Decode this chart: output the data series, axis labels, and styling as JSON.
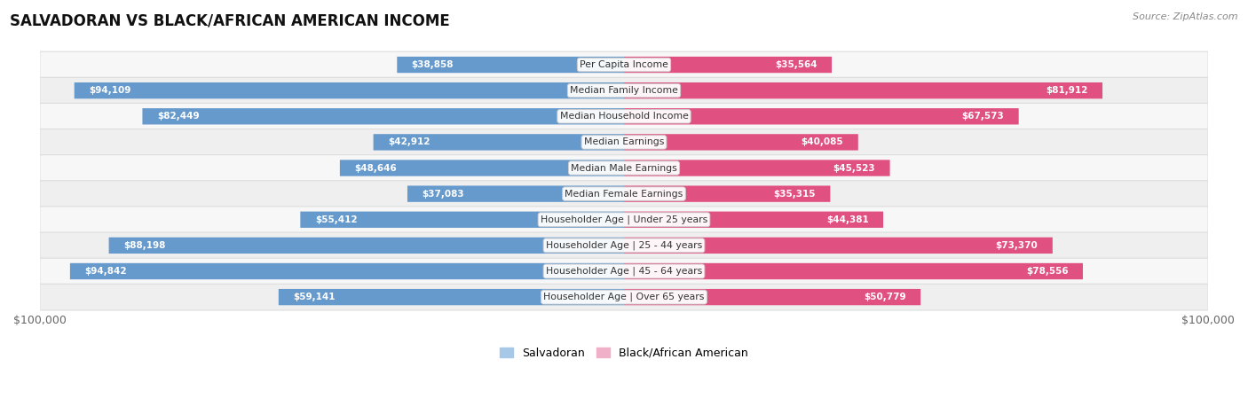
{
  "title": "SALVADORAN VS BLACK/AFRICAN AMERICAN INCOME",
  "source": "Source: ZipAtlas.com",
  "categories": [
    "Per Capita Income",
    "Median Family Income",
    "Median Household Income",
    "Median Earnings",
    "Median Male Earnings",
    "Median Female Earnings",
    "Householder Age | Under 25 years",
    "Householder Age | 25 - 44 years",
    "Householder Age | 45 - 64 years",
    "Householder Age | Over 65 years"
  ],
  "salvadoran_values": [
    38858,
    94109,
    82449,
    42912,
    48646,
    37083,
    55412,
    88198,
    94842,
    59141
  ],
  "black_values": [
    35564,
    81912,
    67573,
    40085,
    45523,
    35315,
    44381,
    73370,
    78556,
    50779
  ],
  "salvadoran_labels": [
    "$38,858",
    "$94,109",
    "$82,449",
    "$42,912",
    "$48,646",
    "$37,083",
    "$55,412",
    "$88,198",
    "$94,842",
    "$59,141"
  ],
  "black_labels": [
    "$35,564",
    "$81,912",
    "$67,573",
    "$40,085",
    "$45,523",
    "$35,315",
    "$44,381",
    "$73,370",
    "$78,556",
    "$50,779"
  ],
  "max_value": 100000,
  "salvadoran_color_light": "#A8C8E8",
  "salvadoran_color_dark": "#6699CC",
  "black_color_light": "#F0B0C8",
  "black_color_dark": "#E05080",
  "row_bg_even": "#F7F7F7",
  "row_bg_odd": "#EFEFEF",
  "bar_height": 0.62,
  "xlabel_left": "$100,000",
  "xlabel_right": "$100,000",
  "inside_label_threshold": 20000
}
